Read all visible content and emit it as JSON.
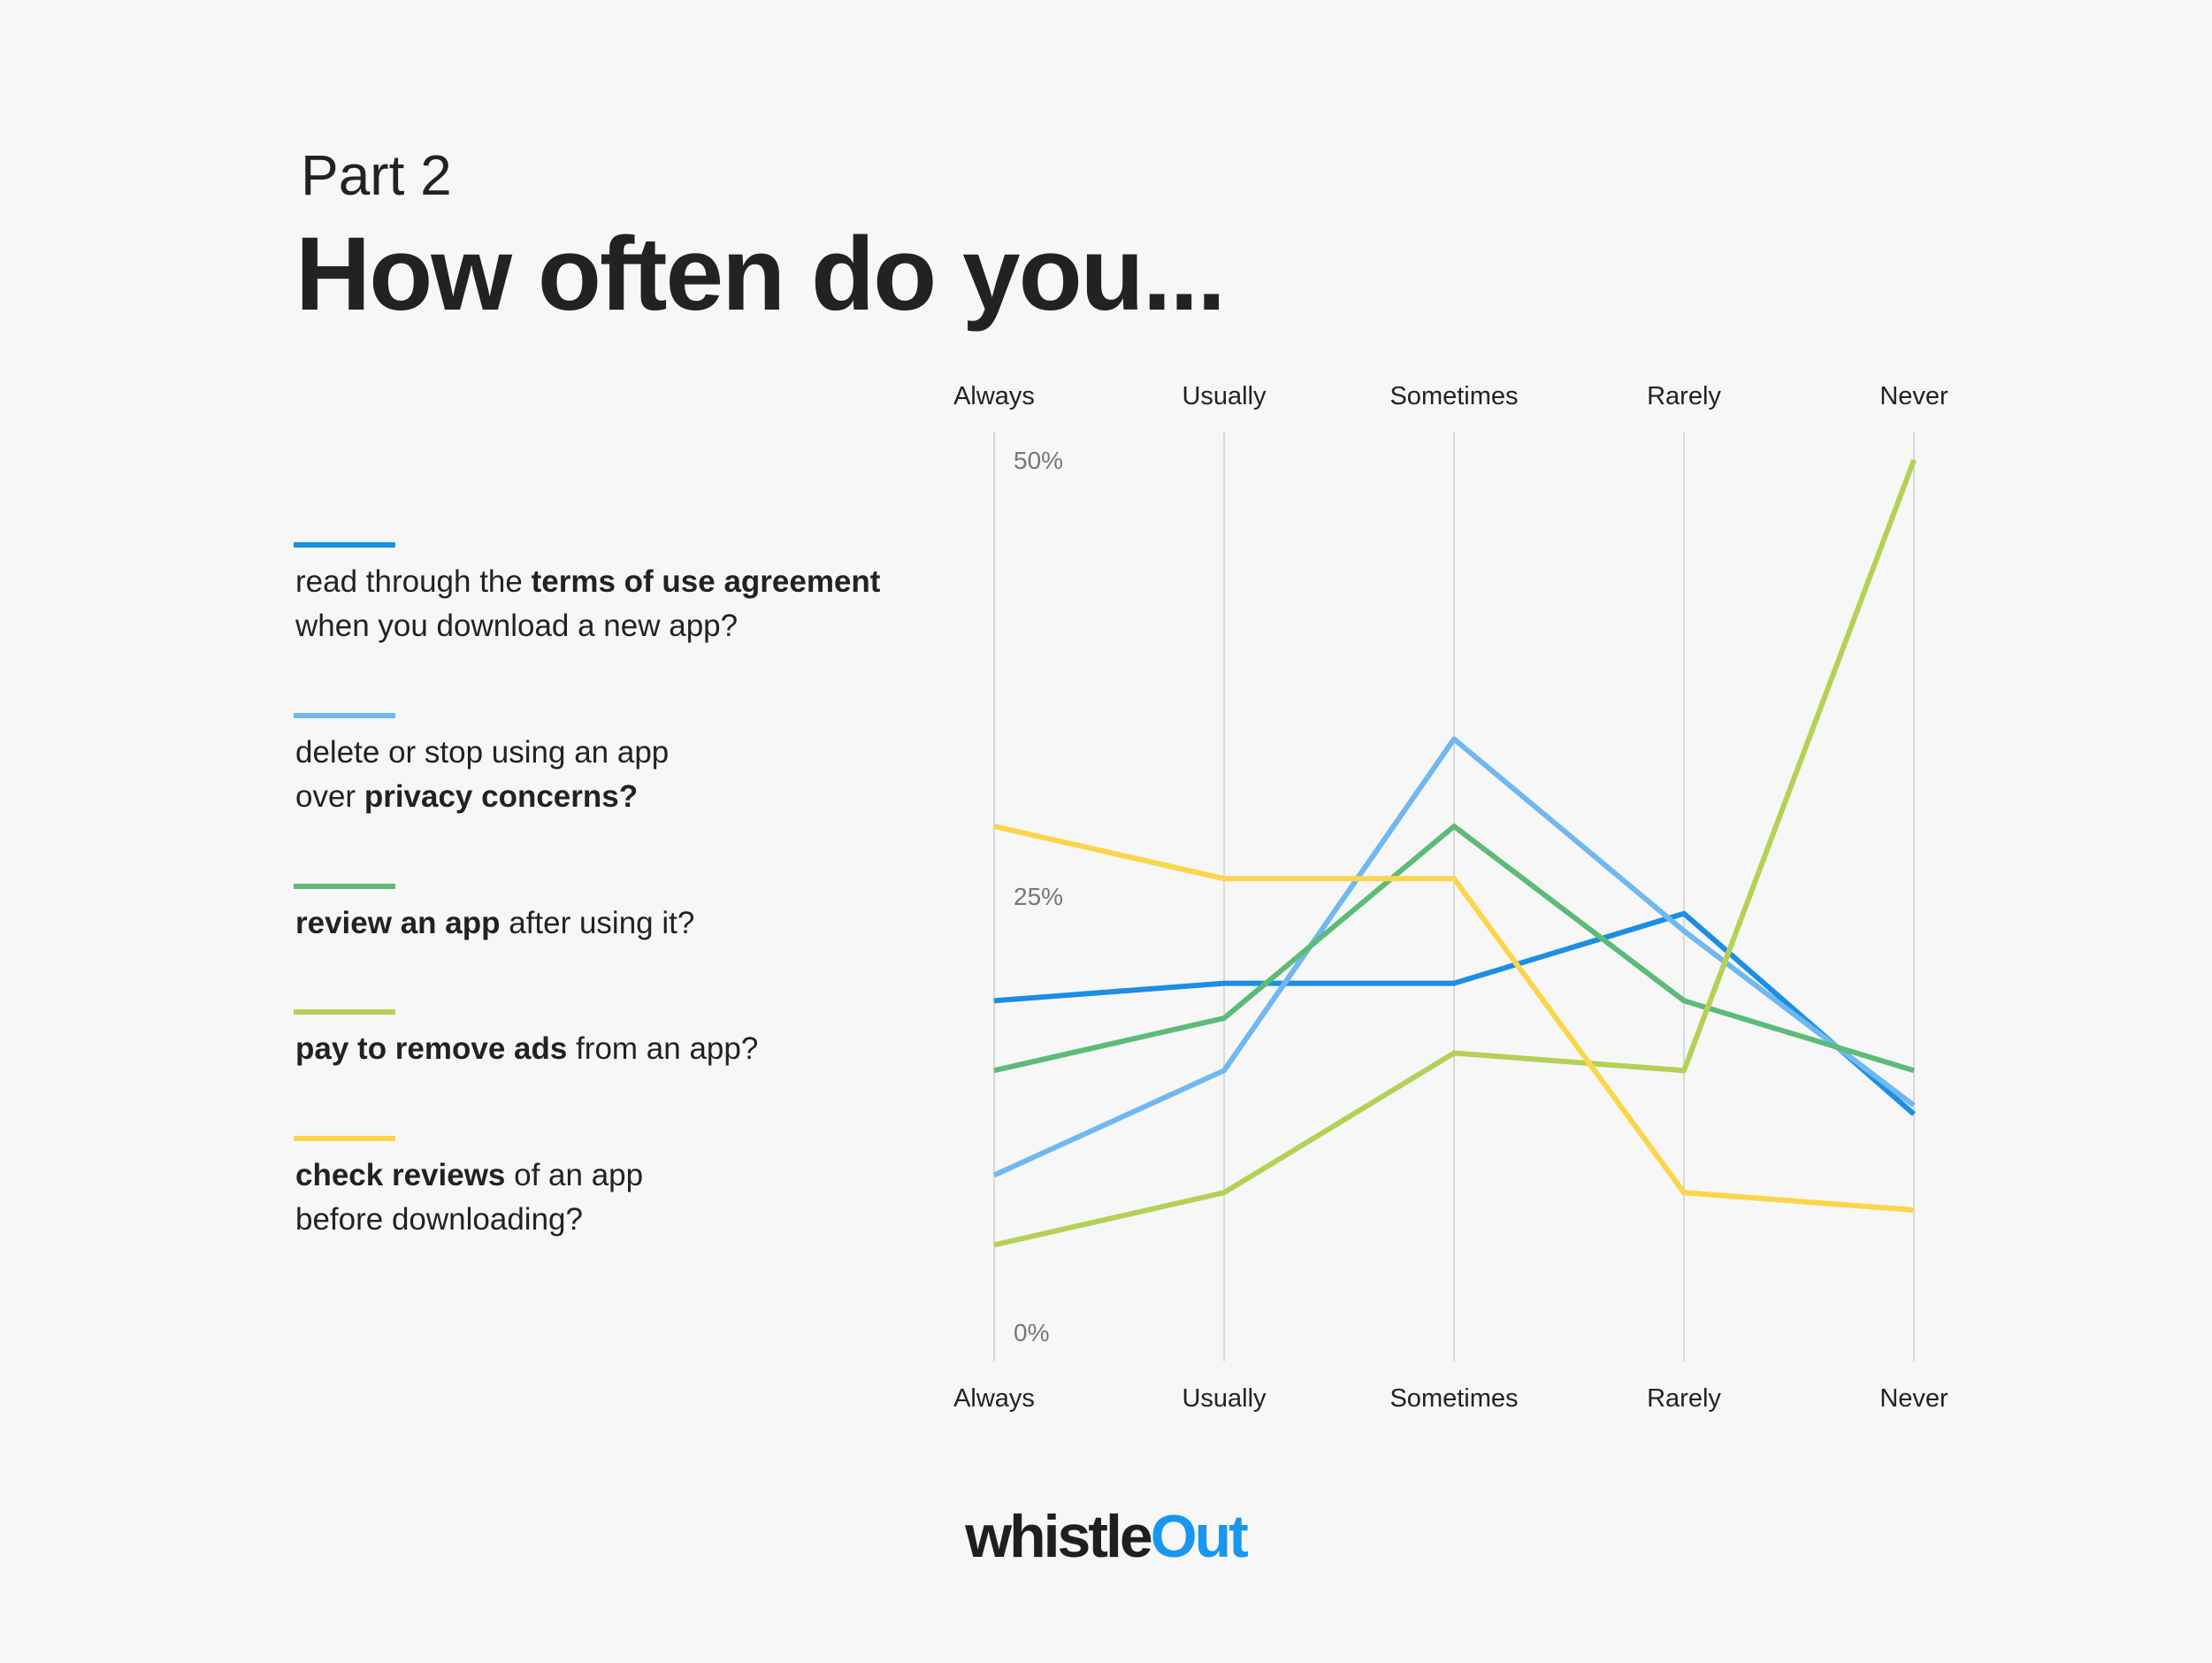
{
  "chart_data": {
    "type": "line",
    "subtitle": "Part 2",
    "title": "How often do you...",
    "categories": [
      "Always",
      "Usually",
      "Sometimes",
      "Rarely",
      "Never"
    ],
    "ylim": [
      0,
      50
    ],
    "yticks": [
      {
        "value": 0,
        "label": "0%"
      },
      {
        "value": 25,
        "label": "25%"
      },
      {
        "value": 50,
        "label": "50%"
      }
    ],
    "grid": "x",
    "legend": "left",
    "series": [
      {
        "name": [
          [
            {
              "text": "read through the "
            },
            {
              "text": "terms of use agreement",
              "bold": true
            }
          ],
          [
            {
              "text": "when you download a new app?"
            }
          ]
        ],
        "color": "#1a8fe3",
        "values": [
          19,
          20,
          20,
          24,
          12.5
        ]
      },
      {
        "name": [
          [
            {
              "text": "delete or stop using an app"
            }
          ],
          [
            {
              "text": "over "
            },
            {
              "text": "privacy concerns?",
              "bold": true
            }
          ]
        ],
        "color": "#6fb8f0",
        "values": [
          9,
          15,
          34,
          23,
          13
        ]
      },
      {
        "name": [
          [
            {
              "text": "review an app",
              "bold": true
            },
            {
              "text": " after using it?"
            }
          ]
        ],
        "color": "#5dbb78",
        "values": [
          15,
          18,
          29,
          19,
          15
        ]
      },
      {
        "name": [
          [
            {
              "text": "pay to remove ads",
              "bold": true
            },
            {
              "text": " from an app?"
            }
          ]
        ],
        "color": "#b5d155",
        "values": [
          5,
          8,
          16,
          15,
          50
        ]
      },
      {
        "name": [
          [
            {
              "text": "check reviews",
              "bold": true
            },
            {
              "text": " of an app"
            }
          ],
          [
            {
              "text": "before downloading?"
            }
          ]
        ],
        "color": "#fbd54a",
        "values": [
          29,
          26,
          26,
          8,
          7
        ]
      }
    ]
  },
  "logo": {
    "dark": "whistle",
    "accent": "Out"
  }
}
